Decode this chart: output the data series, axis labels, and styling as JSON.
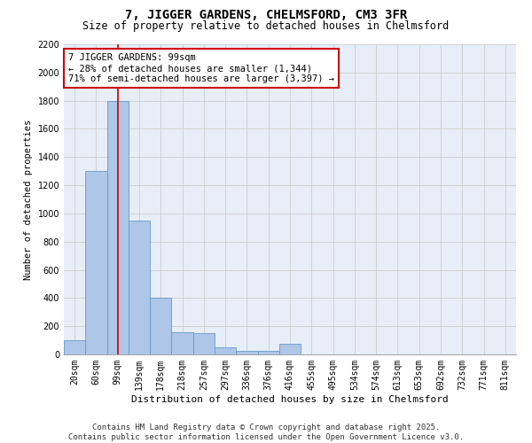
{
  "title1": "7, JIGGER GARDENS, CHELMSFORD, CM3 3FR",
  "title2": "Size of property relative to detached houses in Chelmsford",
  "xlabel": "Distribution of detached houses by size in Chelmsford",
  "ylabel": "Number of detached properties",
  "categories": [
    "20sqm",
    "60sqm",
    "99sqm",
    "139sqm",
    "178sqm",
    "218sqm",
    "257sqm",
    "297sqm",
    "336sqm",
    "376sqm",
    "416sqm",
    "455sqm",
    "495sqm",
    "534sqm",
    "574sqm",
    "613sqm",
    "653sqm",
    "692sqm",
    "732sqm",
    "771sqm",
    "811sqm"
  ],
  "values": [
    100,
    1300,
    1800,
    950,
    400,
    160,
    150,
    50,
    25,
    25,
    75,
    0,
    0,
    0,
    0,
    0,
    0,
    0,
    0,
    0,
    0
  ],
  "bar_color": "#aec6e8",
  "bar_edge_color": "#6699cc",
  "vline_x": 2,
  "vline_color": "#cc0000",
  "annotation_text": "7 JIGGER GARDENS: 99sqm\n← 28% of detached houses are smaller (1,344)\n71% of semi-detached houses are larger (3,397) →",
  "annotation_box_color": "#cc0000",
  "ylim": [
    0,
    2200
  ],
  "yticks": [
    0,
    200,
    400,
    600,
    800,
    1000,
    1200,
    1400,
    1600,
    1800,
    2000,
    2200
  ],
  "grid_color": "#cccccc",
  "background_color": "#e8eef8",
  "footer_text": "Contains HM Land Registry data © Crown copyright and database right 2025.\nContains public sector information licensed under the Open Government Licence v3.0.",
  "title1_fontsize": 10,
  "title2_fontsize": 8.5,
  "xlabel_fontsize": 8,
  "ylabel_fontsize": 7.5,
  "tick_fontsize": 7,
  "annotation_fontsize": 7.5,
  "footer_fontsize": 6.5
}
